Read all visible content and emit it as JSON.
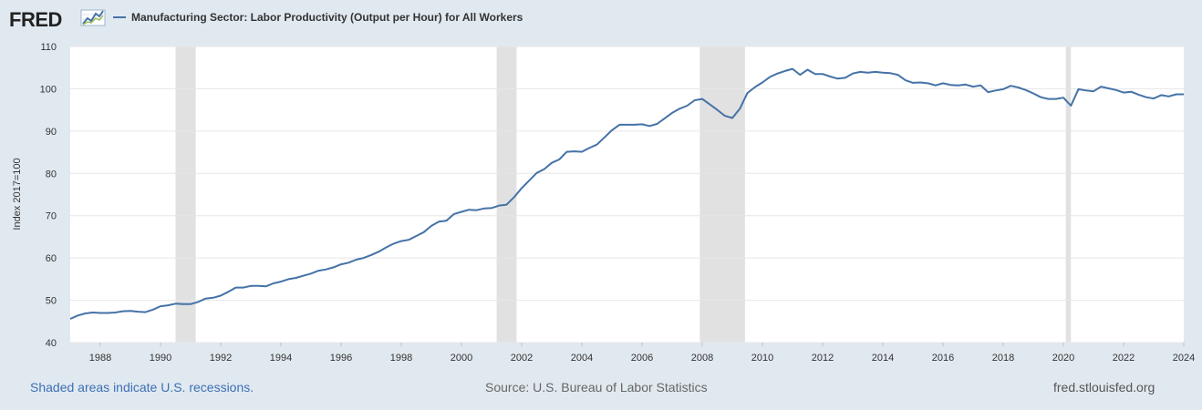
{
  "logo": {
    "text": "FRED"
  },
  "legend": {
    "label": "Manufacturing Sector: Labor Productivity (Output per Hour) for All Workers"
  },
  "footer": {
    "left": "Shaded areas indicate U.S. recessions.",
    "center": "Source: U.S. Bureau of Labor Statistics",
    "right": "fred.stlouisfed.org"
  },
  "colors": {
    "page_background": "#e1e9f0",
    "plot_background": "#ffffff",
    "series_line": "#4572a7",
    "recession_shade": "#e1e1e1",
    "gridline": "#e6e6e6",
    "footer_link": "#3c6fb4"
  },
  "chart_data": {
    "type": "line",
    "ylabel": "Index 2017=100",
    "ylim": [
      40,
      110
    ],
    "yticks": [
      40,
      50,
      60,
      70,
      80,
      90,
      100,
      110
    ],
    "xlim": [
      1987.0,
      2024.0
    ],
    "xticks": [
      "1988",
      "1990",
      "1992",
      "1994",
      "1996",
      "1998",
      "2000",
      "2002",
      "2004",
      "2006",
      "2008",
      "2010",
      "2012",
      "2014",
      "2016",
      "2018",
      "2020",
      "2022",
      "2024"
    ],
    "grid": true,
    "recessions": [
      [
        1990.5,
        1991.17
      ],
      [
        2001.17,
        2001.83
      ],
      [
        2007.92,
        2009.42
      ],
      [
        2020.08,
        2020.25
      ]
    ],
    "series": [
      {
        "name": "Manufacturing Sector: Labor Productivity (Output per Hour) for All Workers",
        "x": [
          1987.0,
          1987.25,
          1987.5,
          1987.75,
          1988.0,
          1988.25,
          1988.5,
          1988.75,
          1989.0,
          1989.25,
          1989.5,
          1989.75,
          1990.0,
          1990.25,
          1990.5,
          1990.75,
          1991.0,
          1991.25,
          1991.5,
          1991.75,
          1992.0,
          1992.25,
          1992.5,
          1992.75,
          1993.0,
          1993.25,
          1993.5,
          1993.75,
          1994.0,
          1994.25,
          1994.5,
          1994.75,
          1995.0,
          1995.25,
          1995.5,
          1995.75,
          1996.0,
          1996.25,
          1996.5,
          1996.75,
          1997.0,
          1997.25,
          1997.5,
          1997.75,
          1998.0,
          1998.25,
          1998.5,
          1998.75,
          1999.0,
          1999.25,
          1999.5,
          1999.75,
          2000.0,
          2000.25,
          2000.5,
          2000.75,
          2001.0,
          2001.25,
          2001.5,
          2001.75,
          2002.0,
          2002.25,
          2002.5,
          2002.75,
          2003.0,
          2003.25,
          2003.5,
          2003.75,
          2004.0,
          2004.25,
          2004.5,
          2004.75,
          2005.0,
          2005.25,
          2005.5,
          2005.75,
          2006.0,
          2006.25,
          2006.5,
          2006.75,
          2007.0,
          2007.25,
          2007.5,
          2007.75,
          2008.0,
          2008.25,
          2008.5,
          2008.75,
          2009.0,
          2009.25,
          2009.5,
          2009.75,
          2010.0,
          2010.25,
          2010.5,
          2010.75,
          2011.0,
          2011.25,
          2011.5,
          2011.75,
          2012.0,
          2012.25,
          2012.5,
          2012.75,
          2013.0,
          2013.25,
          2013.5,
          2013.75,
          2014.0,
          2014.25,
          2014.5,
          2014.75,
          2015.0,
          2015.25,
          2015.5,
          2015.75,
          2016.0,
          2016.25,
          2016.5,
          2016.75,
          2017.0,
          2017.25,
          2017.5,
          2017.75,
          2018.0,
          2018.25,
          2018.5,
          2018.75,
          2019.0,
          2019.25,
          2019.5,
          2019.75,
          2020.0,
          2020.25,
          2020.5,
          2020.75,
          2021.0,
          2021.25,
          2021.5,
          2021.75,
          2022.0,
          2022.25,
          2022.5,
          2022.75,
          2023.0,
          2023.25,
          2023.5,
          2023.75,
          2024.0
        ],
        "values": [
          45.6,
          46.4,
          46.9,
          47.1,
          47.0,
          47.0,
          47.1,
          47.4,
          47.5,
          47.3,
          47.2,
          47.8,
          48.6,
          48.8,
          49.2,
          49.1,
          49.1,
          49.6,
          50.4,
          50.6,
          51.1,
          52.0,
          53.0,
          53.0,
          53.4,
          53.4,
          53.3,
          54.0,
          54.4,
          55.0,
          55.3,
          55.8,
          56.3,
          57.0,
          57.3,
          57.8,
          58.5,
          58.9,
          59.6,
          60.0,
          60.7,
          61.5,
          62.5,
          63.4,
          64.0,
          64.3,
          65.2,
          66.1,
          67.6,
          68.6,
          68.8,
          70.4,
          70.9,
          71.4,
          71.3,
          71.7,
          71.8,
          72.4,
          72.6,
          74.4,
          76.5,
          78.3,
          80.1,
          81.0,
          82.5,
          83.3,
          85.1,
          85.2,
          85.1,
          86.0,
          86.8,
          88.5,
          90.2,
          91.5,
          91.5,
          91.5,
          91.6,
          91.2,
          91.7,
          93.0,
          94.3,
          95.3,
          96.0,
          97.3,
          97.6,
          96.3,
          95.0,
          93.6,
          93.1,
          95.3,
          99.0,
          100.4,
          101.5,
          102.8,
          103.6,
          104.2,
          104.7,
          103.3,
          104.5,
          103.5,
          103.5,
          102.9,
          102.4,
          102.6,
          103.6,
          104.0,
          103.8,
          104.0,
          103.8,
          103.7,
          103.3,
          102.0,
          101.4,
          101.5,
          101.3,
          100.8,
          101.3,
          100.9,
          100.8,
          101.0,
          100.5,
          100.8,
          99.2,
          99.6,
          99.9,
          100.7,
          100.3,
          99.7,
          98.9,
          98.0,
          97.6,
          97.6,
          97.9,
          96.0,
          99.9,
          99.6,
          99.4,
          100.5,
          100.1,
          99.7,
          99.1,
          99.3,
          98.6,
          98.0,
          97.7,
          98.5,
          98.2,
          98.7,
          98.7
        ]
      }
    ]
  }
}
